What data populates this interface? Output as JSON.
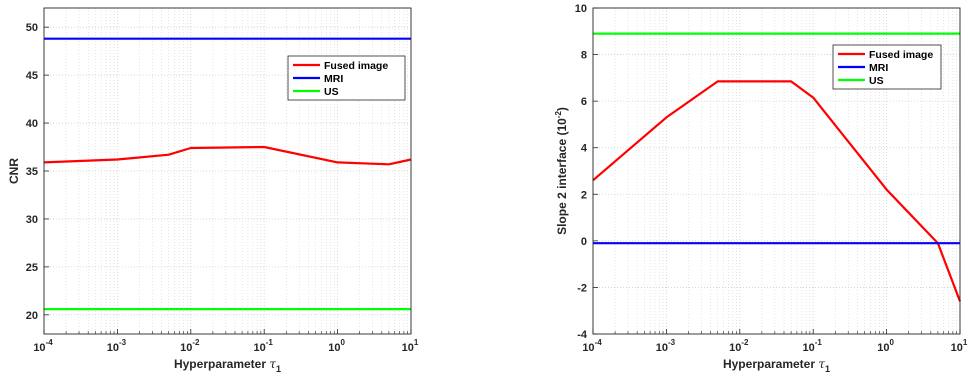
{
  "chart_data": [
    {
      "type": "line",
      "xscale": "log",
      "xlim": [
        0.0001,
        10
      ],
      "ylim": [
        18,
        52
      ],
      "yticks": [
        20,
        25,
        30,
        35,
        40,
        45,
        50
      ],
      "x_ticks": [
        {
          "value": 0.0001,
          "base": "10",
          "exp": "-4"
        },
        {
          "value": 0.001,
          "base": "10",
          "exp": "-3"
        },
        {
          "value": 0.01,
          "base": "10",
          "exp": "-2"
        },
        {
          "value": 0.1,
          "base": "10",
          "exp": "-1"
        },
        {
          "value": 1,
          "base": "10",
          "exp": "0"
        },
        {
          "value": 10,
          "base": "10",
          "exp": "1"
        }
      ],
      "xlabel": {
        "text": "Hyperparameter ",
        "symbol": "τ",
        "sub": "1"
      },
      "ylabel": {
        "text": "CNR",
        "sup": ""
      },
      "grid": true,
      "legend_position": "top-right",
      "series": [
        {
          "name": "Fused image",
          "color": "#ff0000",
          "x": [
            0.0001,
            0.001,
            0.005,
            0.01,
            0.1,
            1,
            5,
            10
          ],
          "y": [
            35.9,
            36.2,
            36.7,
            37.4,
            37.5,
            35.9,
            35.7,
            36.2
          ]
        },
        {
          "name": "MRI",
          "color": "#0000ff",
          "x": [
            0.0001,
            10
          ],
          "y": [
            48.8,
            48.8
          ]
        },
        {
          "name": "US",
          "color": "#00ff00",
          "x": [
            0.0001,
            10
          ],
          "y": [
            20.6,
            20.6
          ]
        }
      ]
    },
    {
      "type": "line",
      "xscale": "log",
      "xlim": [
        0.0001,
        10
      ],
      "ylim": [
        -4,
        10
      ],
      "yticks": [
        -4,
        -2,
        0,
        2,
        4,
        6,
        8,
        10
      ],
      "x_ticks": [
        {
          "value": 0.0001,
          "base": "10",
          "exp": "-4"
        },
        {
          "value": 0.001,
          "base": "10",
          "exp": "-3"
        },
        {
          "value": 0.01,
          "base": "10",
          "exp": "-2"
        },
        {
          "value": 0.1,
          "base": "10",
          "exp": "-1"
        },
        {
          "value": 1,
          "base": "10",
          "exp": "0"
        },
        {
          "value": 10,
          "base": "10",
          "exp": "1"
        }
      ],
      "xlabel": {
        "text": "Hyperparameter ",
        "symbol": "τ",
        "sub": "1"
      },
      "ylabel": {
        "text": "Slope 2 interface (10",
        "sup": "-2",
        "end": ")"
      },
      "grid": true,
      "legend_position": "top-right",
      "series": [
        {
          "name": "Fused image",
          "color": "#ff0000",
          "x": [
            0.0001,
            0.001,
            0.005,
            0.05,
            0.1,
            1,
            5,
            10
          ],
          "y": [
            2.6,
            5.3,
            6.85,
            6.85,
            6.15,
            2.2,
            -0.1,
            -2.6
          ]
        },
        {
          "name": "MRI",
          "color": "#0000ff",
          "x": [
            0.0001,
            10
          ],
          "y": [
            -0.1,
            -0.1
          ]
        },
        {
          "name": "US",
          "color": "#00ff00",
          "x": [
            0.0001,
            10
          ],
          "y": [
            8.9,
            8.9
          ]
        }
      ]
    }
  ]
}
